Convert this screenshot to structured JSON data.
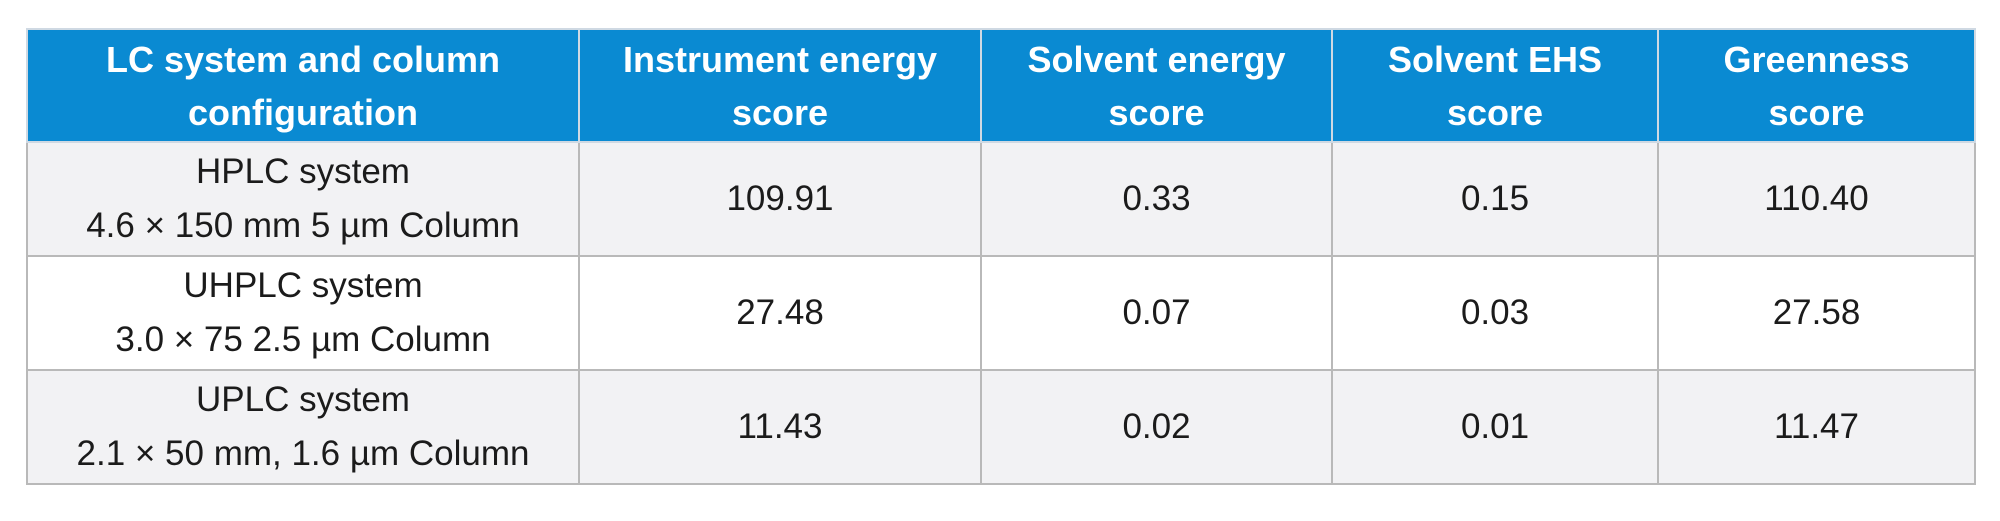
{
  "headers": [
    [
      "LC system and column",
      "configuration"
    ],
    [
      "Instrument energy",
      "score"
    ],
    [
      "Solvent energy",
      "score"
    ],
    [
      "Solvent EHS",
      "score"
    ],
    [
      "Greenness",
      "score"
    ]
  ],
  "rows": [
    {
      "system": "HPLC system",
      "column": "4.6 × 150 mm 5 µm Column",
      "instrument_energy_score": "109.91",
      "solvent_energy_score": "0.33",
      "solvent_ehs_score": "0.15",
      "greenness_score": "110.40"
    },
    {
      "system": "UHPLC system",
      "column": "3.0 × 75  2.5 µm Column",
      "instrument_energy_score": "27.48",
      "solvent_energy_score": "0.07",
      "solvent_ehs_score": "0.03",
      "greenness_score": "27.58"
    },
    {
      "system": "UPLC system",
      "column": "2.1 × 50 mm, 1.6 µm Column",
      "instrument_energy_score": "11.43",
      "solvent_energy_score": "0.02",
      "solvent_ehs_score": "0.01",
      "greenness_score": "11.47"
    }
  ],
  "colors": {
    "header_background": "#0a8ad2",
    "header_text": "#ffffff",
    "row_shaded": "#f2f2f4",
    "row_plain": "#ffffff",
    "grid": "#b9b9b9"
  }
}
